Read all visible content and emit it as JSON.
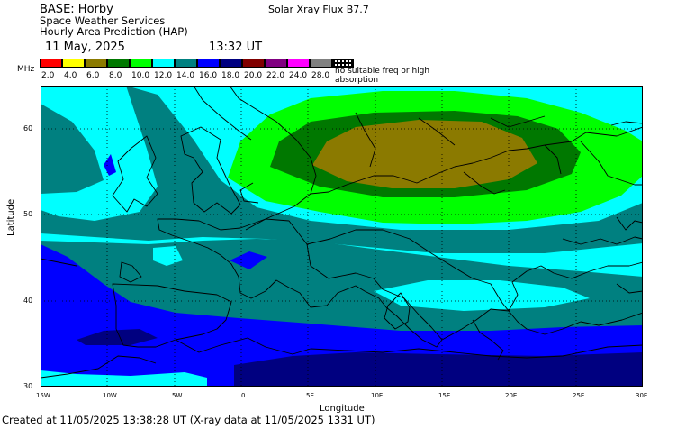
{
  "header": {
    "base": "BASE: Horby",
    "org": "Space Weather Services",
    "product": "Hourly Area Prediction (HAP)",
    "date": "11 May, 2025",
    "time": "13:32 UT",
    "xray": "Solar Xray Flux B7.7"
  },
  "legend": {
    "unit": "MHz",
    "colors": [
      "#ff0000",
      "#ffff00",
      "#8b7a00",
      "#007800",
      "#00ff00",
      "#00ffff",
      "#008080",
      "#0000ff",
      "#000080",
      "#800000",
      "#800080",
      "#ff00ff",
      "#808080"
    ],
    "labels": [
      "2.0",
      "4.0",
      "6.0",
      "8.0",
      "10.0",
      "12.0",
      "14.0",
      "16.0",
      "18.0",
      "20.0",
      "22.0",
      "24.0",
      "28.0"
    ],
    "no_data_label": "no suitable freq or high absorption"
  },
  "axes": {
    "xlabel": "Longitude",
    "ylabel": "Latitude",
    "xticks": [
      "15W",
      "10W",
      "5W",
      "0",
      "5E",
      "10E",
      "15E",
      "20E",
      "25E",
      "30E"
    ],
    "yticks": [
      "60",
      "50",
      "40",
      "30"
    ]
  },
  "footer": "Created at 11/05/2025 13:38:28 UT (X-ray data at 11/05/2025 1331 UT)"
}
